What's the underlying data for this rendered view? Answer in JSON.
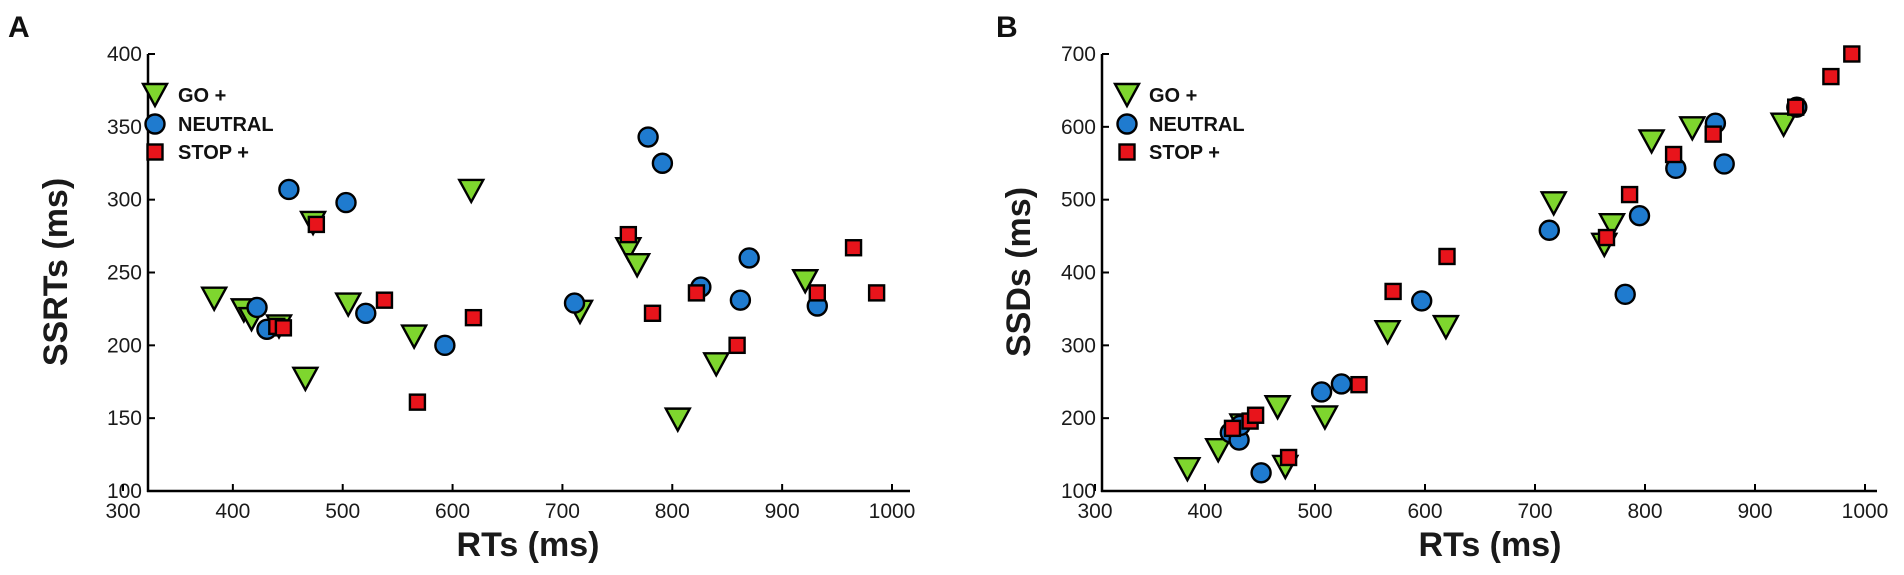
{
  "colors": {
    "go": "#7ED62E",
    "neutral": "#1F7BCF",
    "stop": "#E8141B",
    "outline": "#000000"
  },
  "chart_data": [
    {
      "panel": "A",
      "type": "scatter",
      "xlabel": "RTs (ms)",
      "ylabel": "SSRTs (ms)",
      "xlim": [
        300,
        1000
      ],
      "ylim": [
        100,
        400
      ],
      "xticks": [
        300,
        400,
        500,
        600,
        700,
        800,
        900,
        1000
      ],
      "yticks": [
        100,
        150,
        200,
        250,
        300,
        350,
        400
      ],
      "legend_position": "top-left",
      "series": [
        {
          "name": "GO +",
          "marker": "triangle-down",
          "color": "#7ED62E",
          "points": [
            [
              383,
              232
            ],
            [
              410,
              224
            ],
            [
              417,
              218
            ],
            [
              442,
              213
            ],
            [
              466,
              177
            ],
            [
              473,
              284
            ],
            [
              505,
              228
            ],
            [
              565,
              206
            ],
            [
              617,
              306
            ],
            [
              716,
              223
            ],
            [
              760,
              266
            ],
            [
              768,
              255
            ],
            [
              805,
              149
            ],
            [
              840,
              187
            ],
            [
              921,
              244
            ]
          ]
        },
        {
          "name": "NEUTRAL",
          "marker": "circle",
          "color": "#1F7BCF",
          "points": [
            [
              422,
              226
            ],
            [
              431,
              211
            ],
            [
              451,
              307
            ],
            [
              503,
              298
            ],
            [
              521,
              222
            ],
            [
              593,
              200
            ],
            [
              711,
              229
            ],
            [
              778,
              343
            ],
            [
              791,
              325
            ],
            [
              826,
              240
            ],
            [
              862,
              231
            ],
            [
              870,
              260
            ],
            [
              932,
              227
            ]
          ]
        },
        {
          "name": "STOP +",
          "marker": "square",
          "color": "#E8141B",
          "points": [
            [
              440,
              213
            ],
            [
              446,
              212
            ],
            [
              476,
              283
            ],
            [
              538,
              231
            ],
            [
              568,
              161
            ],
            [
              619,
              219
            ],
            [
              760,
              276
            ],
            [
              782,
              222
            ],
            [
              822,
              236
            ],
            [
              859,
              200
            ],
            [
              932,
              236
            ],
            [
              965,
              267
            ],
            [
              986,
              236
            ]
          ]
        }
      ]
    },
    {
      "panel": "B",
      "type": "scatter",
      "xlabel": "RTs (ms)",
      "ylabel": "SSDs (ms)",
      "xlim": [
        300,
        1000
      ],
      "ylim": [
        100,
        700
      ],
      "xticks": [
        300,
        400,
        500,
        600,
        700,
        800,
        900,
        1000
      ],
      "yticks": [
        100,
        200,
        300,
        400,
        500,
        600,
        700
      ],
      "legend_position": "top-left",
      "series": [
        {
          "name": "GO +",
          "marker": "triangle-down",
          "color": "#7ED62E",
          "points": [
            [
              384,
              130
            ],
            [
              412,
              156
            ],
            [
              434,
              190
            ],
            [
              466,
              215
            ],
            [
              473,
              133
            ],
            [
              509,
              201
            ],
            [
              566,
              318
            ],
            [
              619,
              325
            ],
            [
              717,
              495
            ],
            [
              763,
              438
            ],
            [
              770,
              465
            ],
            [
              806,
              580
            ],
            [
              843,
              598
            ],
            [
              926,
              603
            ]
          ]
        },
        {
          "name": "NEUTRAL",
          "marker": "circle",
          "color": "#1F7BCF",
          "points": [
            [
              423,
              180
            ],
            [
              431,
              170
            ],
            [
              432,
              190
            ],
            [
              451,
              125
            ],
            [
              506,
              236
            ],
            [
              524,
              247
            ],
            [
              597,
              361
            ],
            [
              713,
              458
            ],
            [
              782,
              370
            ],
            [
              795,
              478
            ],
            [
              828,
              543
            ],
            [
              864,
              605
            ],
            [
              872,
              549
            ],
            [
              938,
              627
            ]
          ]
        },
        {
          "name": "STOP +",
          "marker": "square",
          "color": "#E8141B",
          "points": [
            [
              425,
              186
            ],
            [
              441,
              196
            ],
            [
              446,
              204
            ],
            [
              476,
              146
            ],
            [
              540,
              246
            ],
            [
              571,
              374
            ],
            [
              620,
              422
            ],
            [
              765,
              448
            ],
            [
              786,
              507
            ],
            [
              826,
              562
            ],
            [
              862,
              590
            ],
            [
              937,
              627
            ],
            [
              969,
              669
            ],
            [
              988,
              700
            ]
          ]
        }
      ]
    }
  ]
}
